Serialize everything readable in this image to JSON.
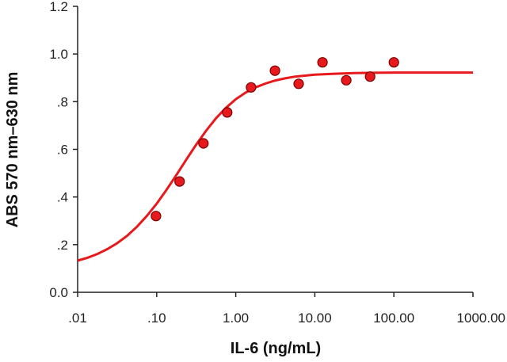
{
  "chart_data": {
    "type": "scatter",
    "title": "",
    "xlabel": "IL-6 (ng/mL)",
    "ylabel": "ABS 570 nm–630 nm",
    "x_scale": "log",
    "xlim": [
      0.01,
      1000
    ],
    "ylim": [
      0.0,
      1.2
    ],
    "grid": false,
    "legend": "none",
    "x_ticks": [
      0.01,
      0.1,
      1,
      10,
      100,
      1000
    ],
    "x_tick_labels": [
      ".01",
      ".10",
      "1.00",
      "10.00",
      "100.00",
      "1000.00"
    ],
    "y_ticks": [
      0.0,
      0.2,
      0.4,
      0.6,
      0.8,
      1.0,
      1.2
    ],
    "y_tick_labels": [
      "0.0",
      ".2",
      ".4",
      ".6",
      ".8",
      "1.0",
      "1.2"
    ],
    "series": [
      {
        "type": "scatter",
        "x": [
          0.098,
          0.195,
          0.39,
          0.78,
          1.56,
          3.13,
          6.25,
          12.5,
          25,
          50,
          100
        ],
        "y": [
          0.32,
          0.465,
          0.625,
          0.755,
          0.86,
          0.93,
          0.875,
          0.965,
          0.89,
          0.905,
          0.965
        ],
        "color": "#e8191c"
      },
      {
        "type": "line",
        "x": [
          0.01,
          0.0133,
          0.0178,
          0.0237,
          0.0316,
          0.0422,
          0.0562,
          0.075,
          0.1,
          0.133,
          0.178,
          0.237,
          0.316,
          0.422,
          0.562,
          0.75,
          1,
          1.33,
          1.78,
          2.37,
          3.16,
          4.22,
          5.62,
          7.5,
          10,
          17.8,
          31.6,
          56.2,
          100,
          178,
          316,
          562,
          1000
        ],
        "y": [
          0.133,
          0.145,
          0.161,
          0.181,
          0.206,
          0.237,
          0.275,
          0.32,
          0.372,
          0.43,
          0.493,
          0.557,
          0.62,
          0.678,
          0.73,
          0.774,
          0.81,
          0.838,
          0.86,
          0.876,
          0.889,
          0.898,
          0.905,
          0.909,
          0.913,
          0.917,
          0.92,
          0.921,
          0.922,
          0.922,
          0.922,
          0.922,
          0.922
        ],
        "color": "#e8191c"
      }
    ]
  }
}
